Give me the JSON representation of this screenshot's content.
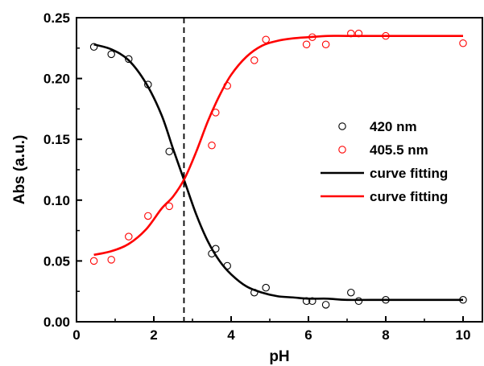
{
  "chart_data": {
    "type": "scatter",
    "xlabel": "pH",
    "ylabel": "Abs (a.u.)",
    "xlim": [
      0,
      10.5
    ],
    "ylim": [
      0,
      0.25
    ],
    "x_ticks": [
      "0",
      "2",
      "4",
      "6",
      "8",
      "10"
    ],
    "y_ticks": [
      "0.00",
      "0.05",
      "0.10",
      "0.15",
      "0.20",
      "0.25"
    ],
    "grid": false,
    "legend_position": "right-center",
    "reference_line": {
      "x": 2.78,
      "style": "dashed"
    },
    "series": [
      {
        "name": "420 nm",
        "kind": "points",
        "color": "#000000",
        "points": [
          [
            0.45,
            0.226
          ],
          [
            0.9,
            0.22
          ],
          [
            1.35,
            0.216
          ],
          [
            1.85,
            0.195
          ],
          [
            2.4,
            0.14
          ],
          [
            3.5,
            0.056
          ],
          [
            3.6,
            0.06
          ],
          [
            3.9,
            0.046
          ],
          [
            4.6,
            0.024
          ],
          [
            4.9,
            0.028
          ],
          [
            5.95,
            0.017
          ],
          [
            6.1,
            0.017
          ],
          [
            6.45,
            0.014
          ],
          [
            7.1,
            0.024
          ],
          [
            7.3,
            0.017
          ],
          [
            8.0,
            0.018
          ],
          [
            10.0,
            0.018
          ]
        ]
      },
      {
        "name": "405.5 nm",
        "kind": "points",
        "color": "#ff0000",
        "points": [
          [
            0.45,
            0.05
          ],
          [
            0.9,
            0.051
          ],
          [
            1.35,
            0.07
          ],
          [
            1.85,
            0.087
          ],
          [
            2.4,
            0.095
          ],
          [
            3.5,
            0.145
          ],
          [
            3.6,
            0.172
          ],
          [
            3.9,
            0.194
          ],
          [
            4.6,
            0.215
          ],
          [
            4.9,
            0.232
          ],
          [
            5.95,
            0.228
          ],
          [
            6.1,
            0.234
          ],
          [
            6.45,
            0.228
          ],
          [
            7.1,
            0.237
          ],
          [
            7.3,
            0.237
          ],
          [
            8.0,
            0.235
          ],
          [
            10.0,
            0.229
          ]
        ]
      },
      {
        "name": "curve fitting",
        "kind": "line",
        "color": "#000000",
        "x": [
          0.45,
          0.9,
          1.35,
          1.8,
          2.2,
          2.5,
          2.8,
          3.1,
          3.4,
          3.7,
          4.0,
          4.4,
          4.8,
          5.2,
          5.6,
          6.0,
          6.5,
          7.0,
          8.0,
          9.0,
          10.0
        ],
        "y": [
          0.228,
          0.224,
          0.215,
          0.196,
          0.17,
          0.142,
          0.115,
          0.088,
          0.066,
          0.05,
          0.039,
          0.029,
          0.024,
          0.021,
          0.02,
          0.019,
          0.019,
          0.018,
          0.018,
          0.018,
          0.018
        ]
      },
      {
        "name": "curve fitting",
        "kind": "line",
        "color": "#ff0000",
        "x": [
          0.45,
          0.9,
          1.35,
          1.8,
          2.2,
          2.5,
          2.8,
          3.1,
          3.4,
          3.7,
          4.0,
          4.4,
          4.8,
          5.2,
          5.6,
          6.0,
          6.5,
          7.0,
          8.0,
          9.0,
          10.0
        ],
        "y": [
          0.055,
          0.058,
          0.064,
          0.076,
          0.093,
          0.103,
          0.118,
          0.14,
          0.165,
          0.186,
          0.203,
          0.218,
          0.227,
          0.231,
          0.233,
          0.234,
          0.235,
          0.235,
          0.235,
          0.235,
          0.235
        ]
      }
    ]
  }
}
